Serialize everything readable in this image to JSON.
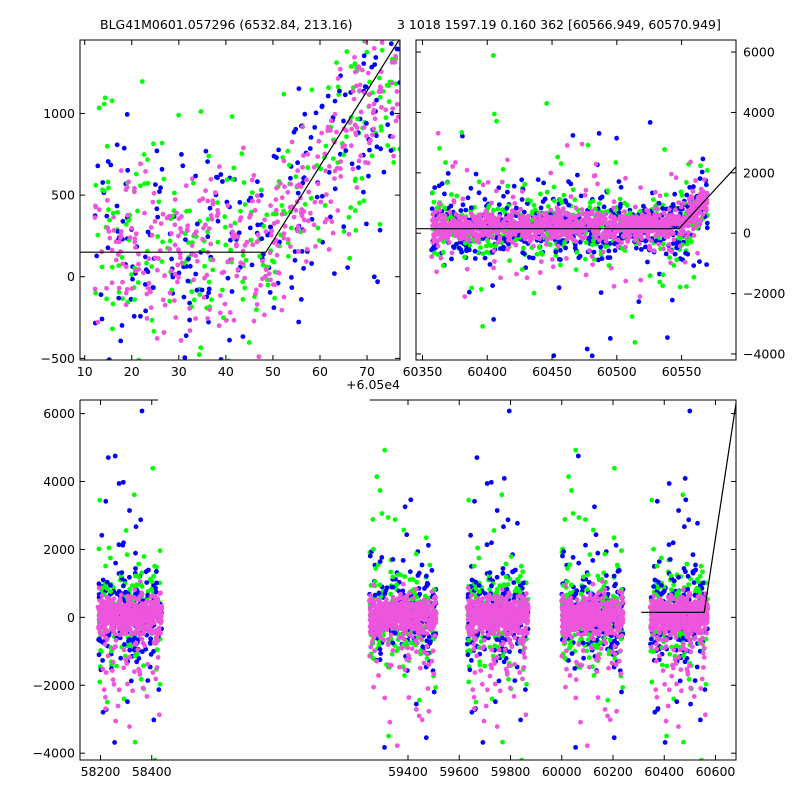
{
  "titles": {
    "left": "BLG41M0601.057296 (6532.84, 213.16)",
    "right": "3 1018 1597.19 0.160 362 [60566.949, 60570.949]"
  },
  "offset_label": "+6.05e4",
  "colors": {
    "green": "#00ff00",
    "blue": "#0000ff",
    "magenta": "#ee55dd",
    "line": "#000000"
  },
  "chart_data": [
    {
      "id": "zoom-left",
      "type": "scatter",
      "xlim": [
        60509,
        60577
      ],
      "ylim": [
        -510,
        1450
      ],
      "xticks": [
        60510,
        60520,
        60530,
        60540,
        60550,
        60560,
        60570
      ],
      "xtick_labels": [
        "10",
        "20",
        "30",
        "40",
        "50",
        "60",
        "70"
      ],
      "yticks": [
        -500,
        0,
        500,
        1000
      ],
      "ytick_labels": [
        "−500",
        "0",
        "500",
        "1000"
      ],
      "model_line": [
        [
          60509,
          150
        ],
        [
          60548.5,
          150
        ],
        [
          60577,
          1460
        ]
      ],
      "point_count": 900
    },
    {
      "id": "zoom-right",
      "type": "scatter",
      "xlim": [
        60345,
        60592
      ],
      "ylim": [
        -4200,
        6400
      ],
      "xticks": [
        60350,
        60400,
        60450,
        60500,
        60550
      ],
      "xtick_labels": [
        "60350",
        "60400",
        "60450",
        "60500",
        "60550"
      ],
      "yticks": [
        -4000,
        -2000,
        0,
        2000,
        4000,
        6000
      ],
      "ytick_labels": [
        "−4000",
        "−2000",
        "0",
        "2000",
        "4000",
        "6000"
      ],
      "model_line": [
        [
          60345,
          150
        ],
        [
          60548,
          150
        ],
        [
          60592,
          2200
        ]
      ],
      "point_count": 2200
    },
    {
      "id": "full-lightcurve",
      "type": "scatter",
      "xlim": [
        58120,
        60680
      ],
      "ylim": [
        -4200,
        6400
      ],
      "xticks": [
        58200,
        58400,
        59400,
        59600,
        59800,
        60000,
        60200,
        60400,
        60600
      ],
      "xtick_labels": [
        "58200",
        "58400",
        "59400",
        "59600",
        "59800",
        "60000",
        "60200",
        "60400",
        "60600"
      ],
      "yticks": [
        -4000,
        -2000,
        0,
        2000,
        4000,
        6000
      ],
      "ytick_labels": [
        "−4000",
        "−2000",
        "0",
        "2000",
        "4000",
        "6000"
      ],
      "axis_break_after": 58425,
      "axis_break_before": 59250,
      "seasons": [
        [
          58190,
          58440
        ],
        [
          59250,
          59510
        ],
        [
          59630,
          59870
        ],
        [
          60000,
          60240
        ],
        [
          60345,
          60570
        ]
      ],
      "model_line": [
        [
          60310,
          150
        ],
        [
          60556,
          150
        ],
        [
          60680,
          6300
        ]
      ],
      "point_count": 4500
    }
  ]
}
